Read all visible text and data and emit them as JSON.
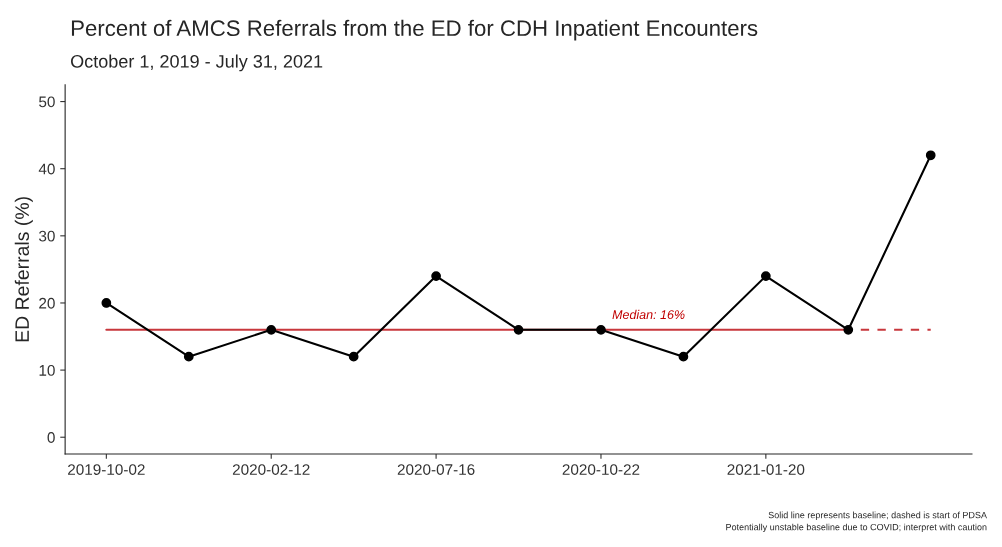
{
  "chart_data": {
    "type": "line",
    "title": "Percent of AMCS Referrals from the ED for CDH Inpatient Encounters",
    "subtitle": "October 1, 2019 - July 31, 2021",
    "ylabel": "ED Referrals (%)",
    "categories": [
      "2019-10-02",
      null,
      "2020-02-12",
      null,
      "2020-07-16",
      null,
      "2020-10-22",
      null,
      "2021-01-20",
      null,
      null
    ],
    "series": [
      {
        "color": "#000000",
        "marker": "circle",
        "line_style": "solid",
        "values": [
          20,
          12,
          16,
          12,
          24,
          16,
          16,
          12,
          24,
          16,
          42
        ]
      },
      {
        "color": "#c8373c",
        "marker": "none",
        "line_style": "solid",
        "values": [
          16,
          16,
          16,
          16,
          16,
          16,
          16,
          16,
          16,
          16,
          null
        ]
      },
      {
        "color": "#c8373c",
        "marker": "none",
        "line_style": "dashed",
        "values": [
          null,
          null,
          null,
          null,
          null,
          null,
          null,
          null,
          null,
          16,
          16
        ]
      }
    ],
    "ylim": [
      -2.5,
      52.5
    ],
    "yticks": [
      0,
      10,
      20,
      30,
      40,
      50
    ],
    "grid": false,
    "legend": false,
    "annotations": [
      {
        "text": "Median: 16%",
        "x": "2020-10-22",
        "y": 16
      },
      "Solid line represents baseline; dashed is start of PDSA",
      "Potentially unstable baseline due to COVID; interpret with caution"
    ]
  }
}
